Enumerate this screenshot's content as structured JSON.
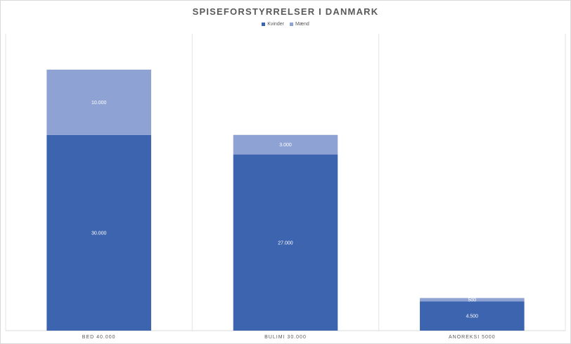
{
  "chart_data": {
    "type": "bar",
    "stacked": true,
    "title": "SPISEFORSTYRRELSER I DANMARK",
    "categories": [
      "BED 40.000",
      "BULIMI 30.000",
      "ANOREKSI 5000"
    ],
    "series": [
      {
        "name": "Kvinder",
        "color": "#3d64ae",
        "values": [
          30000,
          27000,
          4500
        ],
        "labels": [
          "30.000",
          "27.000",
          "4.500"
        ]
      },
      {
        "name": "Mænd",
        "color": "#8fa2d4",
        "values": [
          10000,
          3000,
          500
        ],
        "labels": [
          "10.000",
          "3.000",
          "500"
        ]
      }
    ],
    "ylim": [
      0,
      40000
    ],
    "grid": "vertical-category-separators",
    "legend_position": "top"
  }
}
